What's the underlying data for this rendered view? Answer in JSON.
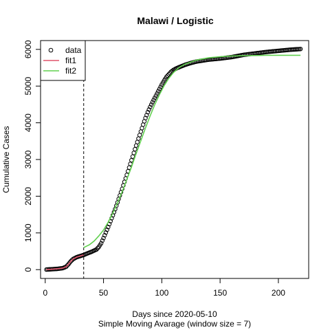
{
  "chart_data": {
    "type": "scatter",
    "title": "Malawi / Logistic",
    "xlabel": "Days since 2020-05-10",
    "subtitle": "Simple Moving Avarage (window size = 7)",
    "ylabel": "Cumulative Cases",
    "xlim": [
      -4,
      226
    ],
    "ylim": [
      -240,
      6240
    ],
    "xticks": [
      0,
      50,
      100,
      150,
      200
    ],
    "yticks": [
      0,
      1000,
      2000,
      3000,
      4000,
      5000,
      6000
    ],
    "vline_x": 33,
    "legend": {
      "position": "top-left",
      "entries": [
        {
          "label": "data",
          "symbol": "circle",
          "color": "#000000"
        },
        {
          "label": "fit1",
          "symbol": "line",
          "color": "#DF536B"
        },
        {
          "label": "fit2",
          "symbol": "line",
          "color": "#61D04F"
        }
      ]
    },
    "data_keyframes": [
      [
        1,
        2
      ],
      [
        5,
        10
      ],
      [
        10,
        20
      ],
      [
        15,
        40
      ],
      [
        18,
        80
      ],
      [
        20,
        150
      ],
      [
        22,
        230
      ],
      [
        24,
        290
      ],
      [
        27,
        340
      ],
      [
        30,
        370
      ],
      [
        33,
        400
      ],
      [
        36,
        440
      ],
      [
        40,
        490
      ],
      [
        44,
        550
      ],
      [
        46,
        620
      ],
      [
        48,
        720
      ],
      [
        50,
        860
      ],
      [
        52,
        1010
      ],
      [
        54,
        1160
      ],
      [
        56,
        1320
      ],
      [
        58,
        1480
      ],
      [
        60,
        1650
      ],
      [
        62,
        1830
      ],
      [
        64,
        2020
      ],
      [
        66,
        2200
      ],
      [
        68,
        2390
      ],
      [
        70,
        2580
      ],
      [
        72,
        2780
      ],
      [
        74,
        2980
      ],
      [
        76,
        3180
      ],
      [
        78,
        3380
      ],
      [
        80,
        3570
      ],
      [
        82,
        3760
      ],
      [
        84,
        3950
      ],
      [
        86,
        4130
      ],
      [
        88,
        4290
      ],
      [
        90,
        4430
      ],
      [
        92,
        4560
      ],
      [
        94,
        4680
      ],
      [
        96,
        4800
      ],
      [
        98,
        4920
      ],
      [
        100,
        5040
      ],
      [
        102,
        5150
      ],
      [
        104,
        5250
      ],
      [
        106,
        5320
      ],
      [
        108,
        5390
      ],
      [
        110,
        5440
      ],
      [
        113,
        5490
      ],
      [
        116,
        5530
      ],
      [
        120,
        5580
      ],
      [
        125,
        5630
      ],
      [
        130,
        5670
      ],
      [
        140,
        5720
      ],
      [
        150,
        5750
      ],
      [
        160,
        5790
      ],
      [
        170,
        5850
      ],
      [
        180,
        5890
      ],
      [
        190,
        5930
      ],
      [
        200,
        5960
      ],
      [
        210,
        5990
      ],
      [
        219,
        6010
      ]
    ],
    "series": [
      {
        "name": "fit1",
        "color": "#DF536B",
        "points": [
          [
            1,
            2
          ],
          [
            5,
            10
          ],
          [
            10,
            20
          ],
          [
            15,
            40
          ],
          [
            18,
            80
          ],
          [
            20,
            150
          ],
          [
            22,
            230
          ],
          [
            24,
            290
          ],
          [
            27,
            340
          ],
          [
            30,
            370
          ],
          [
            33,
            400
          ]
        ]
      },
      {
        "name": "fit2",
        "color": "#61D04F",
        "points": [
          [
            33,
            600
          ],
          [
            38,
            680
          ],
          [
            42,
            780
          ],
          [
            46,
            920
          ],
          [
            50,
            1080
          ],
          [
            54,
            1290
          ],
          [
            58,
            1540
          ],
          [
            62,
            1820
          ],
          [
            66,
            2120
          ],
          [
            70,
            2460
          ],
          [
            74,
            2800
          ],
          [
            78,
            3160
          ],
          [
            82,
            3510
          ],
          [
            86,
            3860
          ],
          [
            90,
            4190
          ],
          [
            94,
            4500
          ],
          [
            98,
            4770
          ],
          [
            102,
            5010
          ],
          [
            106,
            5210
          ],
          [
            110,
            5370
          ],
          [
            115,
            5510
          ],
          [
            120,
            5600
          ],
          [
            130,
            5710
          ],
          [
            140,
            5770
          ],
          [
            150,
            5800
          ],
          [
            160,
            5820
          ],
          [
            175,
            5830
          ],
          [
            190,
            5840
          ],
          [
            219,
            5840
          ]
        ]
      }
    ]
  }
}
